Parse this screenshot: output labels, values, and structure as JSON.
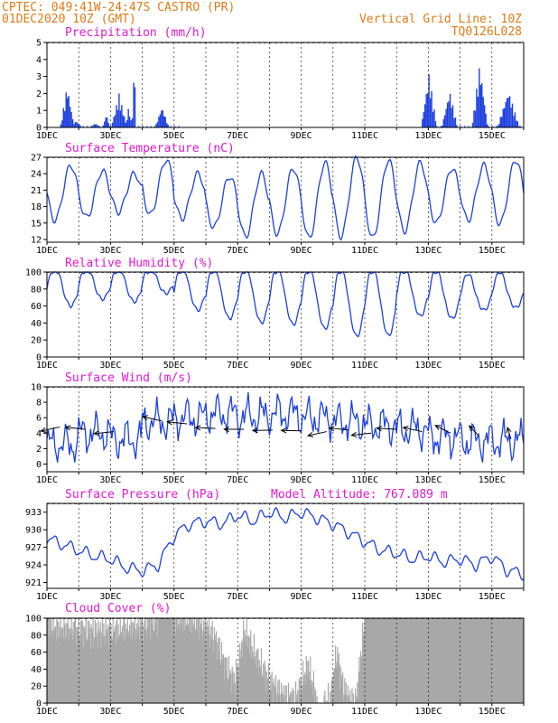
{
  "header": {
    "line1": "CPTEC:   049:41W-24:47S   CASTRO (PR)",
    "line2": "01DEC2020 10Z (GMT)",
    "grid_note": "Vertical Grid Line: 10Z",
    "run_code": "TQ0126L028"
  },
  "colors": {
    "header": "#e07a16",
    "title": "#e21ad0",
    "series": "#1d3fe0",
    "cloud": "#a8a8a8",
    "wind_arrow": "#000000",
    "grid": "#000000"
  },
  "x_axis": {
    "start_day": 1,
    "end_day": 16,
    "tick_days": [
      1,
      3,
      5,
      7,
      9,
      11,
      13,
      15
    ],
    "tick_labels": [
      "1DEC",
      "3DEC",
      "5DEC",
      "7DEC",
      "9DEC",
      "11DEC",
      "13DEC",
      "15DEC"
    ]
  },
  "chart_data": [
    {
      "type": "bar",
      "title": "Precipitation (mm/h)",
      "ylim": [
        0,
        5
      ],
      "yticks": [
        0,
        1,
        2,
        3,
        4,
        5
      ],
      "events": [
        {
          "day": 1.62,
          "peak": 2.5,
          "width": 0.22
        },
        {
          "day": 1.9,
          "peak": 0.4,
          "width": 0.2
        },
        {
          "day": 2.5,
          "peak": 0.25,
          "width": 0.2
        },
        {
          "day": 2.85,
          "peak": 0.8,
          "width": 0.12
        },
        {
          "day": 3.25,
          "peak": 2.0,
          "width": 0.25
        },
        {
          "day": 3.55,
          "peak": 1.2,
          "width": 0.12
        },
        {
          "day": 3.72,
          "peak": 4.9,
          "width": 0.06
        },
        {
          "day": 4.6,
          "peak": 1.25,
          "width": 0.22
        },
        {
          "day": 13.0,
          "peak": 3.2,
          "width": 0.25
        },
        {
          "day": 13.65,
          "peak": 2.2,
          "width": 0.25
        },
        {
          "day": 14.6,
          "peak": 3.8,
          "width": 0.25
        },
        {
          "day": 15.5,
          "peak": 2.2,
          "width": 0.35
        }
      ]
    },
    {
      "type": "line",
      "title": "Surface Temperature (nC)",
      "ylim": [
        11.5,
        27
      ],
      "yticks": [
        12,
        15,
        18,
        21,
        24,
        27
      ],
      "daily_min": [
        15.5,
        16.0,
        17.0,
        16.5,
        15.8,
        14.2,
        12.5,
        13.0,
        12.2,
        12.5,
        12.2,
        13.5,
        15.0,
        15.5,
        14.8
      ],
      "daily_max": [
        25.5,
        24.5,
        24.0,
        26.5,
        24.0,
        23.5,
        24.0,
        25.0,
        26.0,
        27.0,
        26.5,
        26.0,
        25.0,
        25.5,
        26.5
      ],
      "max_hour_frac": 0.75
    },
    {
      "type": "line",
      "title": "Relative Humidity (%)",
      "ylim": [
        0,
        100
      ],
      "yticks": [
        0,
        20,
        40,
        60,
        80,
        100
      ],
      "daily_min": [
        60,
        68,
        65,
        75,
        55,
        45,
        40,
        38,
        33,
        24,
        25,
        48,
        45,
        55,
        58
      ],
      "daily_max": [
        100,
        100,
        100,
        100,
        100,
        100,
        100,
        100,
        100,
        100,
        100,
        100,
        96,
        90,
        92
      ],
      "min_hour_frac": 0.75
    },
    {
      "type": "line",
      "title": "Surface Wind (m/s)",
      "ylim": [
        -1,
        10
      ],
      "yticks": [
        0,
        2,
        4,
        6,
        8,
        10
      ],
      "base_speed": [
        2.5,
        4.0,
        3.2,
        5.5,
        6.0,
        6.5,
        6.2,
        6.5,
        6.0,
        5.5,
        5.0,
        4.5,
        3.5,
        3.0,
        3.0
      ],
      "arrows": [
        {
          "day": 1.4,
          "speed": 4.8,
          "dir_deg": 200
        },
        {
          "day": 2.2,
          "speed": 4.5,
          "dir_deg": 170
        },
        {
          "day": 3.1,
          "speed": 4.2,
          "dir_deg": 190
        },
        {
          "day": 4.6,
          "speed": 5.6,
          "dir_deg": 160
        },
        {
          "day": 5.4,
          "speed": 5.2,
          "dir_deg": 170
        },
        {
          "day": 6.3,
          "speed": 4.6,
          "dir_deg": 175
        },
        {
          "day": 7.2,
          "speed": 4.5,
          "dir_deg": 180
        },
        {
          "day": 8.1,
          "speed": 4.4,
          "dir_deg": 182
        },
        {
          "day": 9.0,
          "speed": 4.3,
          "dir_deg": 178
        },
        {
          "day": 9.8,
          "speed": 4.2,
          "dir_deg": 200
        },
        {
          "day": 10.5,
          "speed": 4.4,
          "dir_deg": 170
        },
        {
          "day": 11.2,
          "speed": 4.0,
          "dir_deg": 190
        },
        {
          "day": 12.0,
          "speed": 4.5,
          "dir_deg": 175
        },
        {
          "day": 12.8,
          "speed": 4.2,
          "dir_deg": 160
        },
        {
          "day": 13.7,
          "speed": 4.0,
          "dir_deg": 140
        },
        {
          "day": 14.6,
          "speed": 3.6,
          "dir_deg": 120
        },
        {
          "day": 15.6,
          "speed": 3.2,
          "dir_deg": 100
        }
      ]
    },
    {
      "type": "line",
      "title": "Surface Pressure (hPa)",
      "annotation": "Model Altitude: 767.089  m",
      "ylim": [
        920,
        934.5
      ],
      "yticks": [
        921,
        924,
        927,
        930,
        933
      ],
      "knots_x": [
        1.0,
        1.5,
        2.0,
        2.5,
        3.0,
        3.5,
        4.0,
        4.5,
        5.0,
        5.5,
        6.0,
        6.5,
        7.0,
        7.5,
        8.0,
        8.5,
        9.0,
        9.5,
        10.0,
        10.5,
        11.0,
        11.5,
        12.0,
        12.5,
        13.0,
        13.5,
        14.0,
        14.5,
        15.0,
        15.5,
        16.0
      ],
      "knots_y": [
        928.5,
        927.5,
        926.5,
        925.5,
        925.0,
        923.5,
        923.0,
        924.0,
        929.0,
        931.0,
        931.5,
        931.0,
        932.5,
        931.5,
        933.0,
        932.0,
        933.0,
        932.0,
        931.0,
        929.5,
        928.0,
        926.5,
        926.0,
        925.0,
        925.5,
        924.5,
        925.0,
        924.0,
        925.5,
        923.0,
        922.5
      ]
    },
    {
      "type": "area",
      "title": "Cloud Cover (%)",
      "ylim": [
        0,
        100
      ],
      "yticks": [
        0,
        20,
        40,
        60,
        80,
        100
      ],
      "knots_x": [
        1.0,
        1.2,
        2.0,
        2.5,
        3.0,
        4.0,
        4.5,
        5.0,
        5.5,
        6.0,
        6.3,
        6.6,
        6.9,
        7.2,
        7.5,
        8.0,
        8.4,
        8.8,
        9.2,
        9.5,
        9.7,
        9.9,
        10.1,
        10.3,
        10.5,
        10.7,
        10.9,
        11.0,
        12.0,
        13.0,
        14.0,
        15.0,
        16.0
      ],
      "knots_y": [
        100,
        90,
        88,
        84,
        86,
        92,
        100,
        100,
        98,
        90,
        75,
        45,
        25,
        85,
        60,
        25,
        10,
        5,
        45,
        0,
        0,
        5,
        60,
        20,
        5,
        0,
        70,
        100,
        100,
        100,
        100,
        100,
        100
      ]
    }
  ]
}
